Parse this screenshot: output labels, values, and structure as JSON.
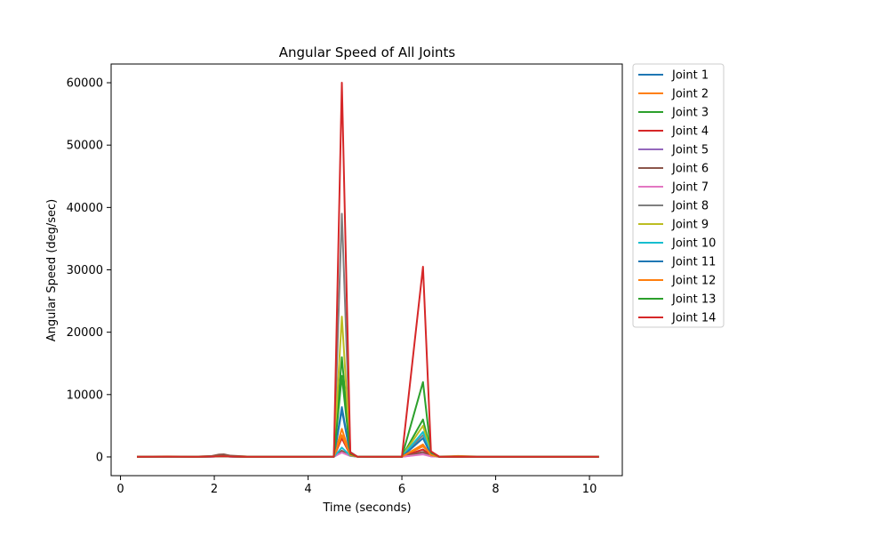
{
  "chart_data": {
    "type": "line",
    "title": "Angular Speed of All Joints",
    "xlabel": "Time (seconds)",
    "ylabel": "Angular Speed (deg/sec)",
    "xlim": [
      -0.2,
      10.7
    ],
    "ylim": [
      -3000,
      63000
    ],
    "xticks": [
      0,
      2,
      4,
      6,
      8,
      10
    ],
    "yticks": [
      0,
      10000,
      20000,
      30000,
      40000,
      50000,
      60000
    ],
    "grid": false,
    "legend_position": "outside right, top",
    "x": [
      0.35,
      1.0,
      1.6,
      1.95,
      2.1,
      2.2,
      2.35,
      2.7,
      3.3,
      3.9,
      4.55,
      4.72,
      4.9,
      5.05,
      5.5,
      6.0,
      6.45,
      6.62,
      6.8,
      7.2,
      7.6,
      8.1,
      8.7,
      9.3,
      9.8,
      10.2
    ],
    "series": [
      {
        "name": "Joint 1",
        "color": "#1f77b4",
        "values": [
          30,
          60,
          40,
          80,
          150,
          180,
          90,
          40,
          30,
          40,
          50,
          7500,
          400,
          60,
          40,
          30,
          1200,
          300,
          40,
          30,
          40,
          30,
          20,
          30,
          40,
          30
        ]
      },
      {
        "name": "Joint 2",
        "color": "#ff7f0e",
        "values": [
          40,
          80,
          50,
          120,
          300,
          350,
          150,
          60,
          40,
          50,
          60,
          4500,
          300,
          70,
          50,
          40,
          1700,
          500,
          60,
          150,
          60,
          40,
          30,
          40,
          50,
          40
        ]
      },
      {
        "name": "Joint 3",
        "color": "#2ca02c",
        "values": [
          20,
          40,
          30,
          60,
          100,
          120,
          70,
          30,
          20,
          30,
          40,
          16000,
          600,
          50,
          30,
          20,
          6000,
          800,
          30,
          20,
          30,
          20,
          20,
          20,
          30,
          20
        ]
      },
      {
        "name": "Joint 4",
        "color": "#d62728",
        "values": [
          20,
          30,
          30,
          50,
          80,
          100,
          50,
          30,
          20,
          30,
          30,
          3000,
          300,
          40,
          30,
          20,
          1200,
          200,
          30,
          20,
          30,
          20,
          20,
          20,
          30,
          20
        ]
      },
      {
        "name": "Joint 5",
        "color": "#9467bd",
        "values": [
          20,
          30,
          30,
          50,
          80,
          90,
          50,
          30,
          20,
          30,
          30,
          800,
          200,
          40,
          30,
          20,
          500,
          100,
          30,
          20,
          30,
          20,
          20,
          20,
          30,
          20
        ]
      },
      {
        "name": "Joint 6",
        "color": "#8c564b",
        "values": [
          30,
          50,
          40,
          150,
          380,
          420,
          200,
          60,
          30,
          40,
          40,
          1000,
          200,
          50,
          40,
          30,
          800,
          150,
          40,
          30,
          40,
          30,
          20,
          30,
          40,
          30
        ]
      },
      {
        "name": "Joint 7",
        "color": "#e377c2",
        "values": [
          20,
          30,
          30,
          50,
          80,
          90,
          50,
          30,
          20,
          30,
          30,
          700,
          150,
          40,
          30,
          20,
          400,
          100,
          30,
          20,
          30,
          20,
          20,
          20,
          30,
          20
        ]
      },
      {
        "name": "Joint 8",
        "color": "#7f7f7f",
        "values": [
          20,
          40,
          30,
          60,
          100,
          110,
          60,
          30,
          20,
          30,
          40,
          39000,
          800,
          50,
          30,
          20,
          3500,
          500,
          30,
          20,
          30,
          20,
          20,
          20,
          30,
          20
        ]
      },
      {
        "name": "Joint 9",
        "color": "#bcbd22",
        "values": [
          20,
          40,
          30,
          60,
          100,
          110,
          60,
          30,
          20,
          30,
          40,
          22500,
          600,
          50,
          30,
          20,
          5000,
          600,
          30,
          20,
          30,
          20,
          20,
          20,
          30,
          20
        ]
      },
      {
        "name": "Joint 10",
        "color": "#17becf",
        "values": [
          20,
          30,
          30,
          50,
          80,
          90,
          50,
          30,
          20,
          30,
          30,
          1500,
          200,
          40,
          30,
          20,
          4000,
          300,
          30,
          20,
          30,
          20,
          20,
          20,
          30,
          20
        ]
      },
      {
        "name": "Joint 11",
        "color": "#1f77b4",
        "values": [
          20,
          40,
          30,
          60,
          100,
          110,
          60,
          30,
          20,
          30,
          40,
          8000,
          400,
          50,
          30,
          20,
          3000,
          400,
          30,
          20,
          30,
          20,
          20,
          20,
          30,
          20
        ]
      },
      {
        "name": "Joint 12",
        "color": "#ff7f0e",
        "values": [
          20,
          40,
          30,
          60,
          100,
          110,
          60,
          30,
          20,
          30,
          40,
          3500,
          300,
          50,
          30,
          20,
          2000,
          300,
          30,
          20,
          30,
          20,
          20,
          20,
          30,
          20
        ]
      },
      {
        "name": "Joint 13",
        "color": "#2ca02c",
        "values": [
          20,
          40,
          30,
          60,
          100,
          110,
          60,
          30,
          20,
          30,
          40,
          13000,
          500,
          50,
          30,
          20,
          12000,
          700,
          30,
          20,
          30,
          20,
          20,
          20,
          30,
          20
        ]
      },
      {
        "name": "Joint 14",
        "color": "#d62728",
        "values": [
          20,
          40,
          30,
          60,
          100,
          110,
          60,
          30,
          20,
          30,
          40,
          60000,
          700,
          50,
          30,
          20,
          30500,
          900,
          30,
          20,
          30,
          20,
          20,
          20,
          30,
          20
        ]
      }
    ]
  }
}
